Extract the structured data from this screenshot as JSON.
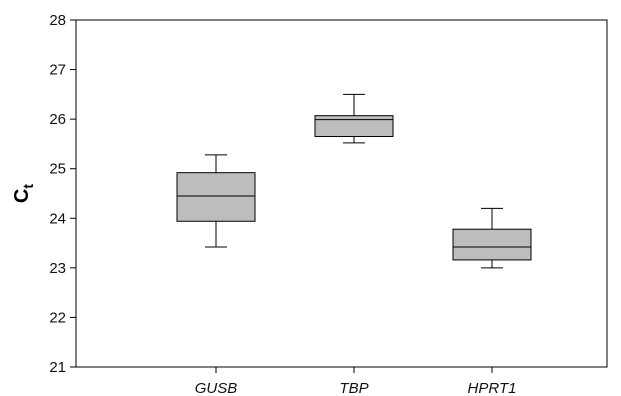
{
  "chart_data": {
    "type": "box",
    "ylabel_main": "C",
    "ylabel_sub": "t",
    "xlabel": "",
    "title": "",
    "ylim": [
      21,
      28
    ],
    "yticks": [
      21,
      22,
      23,
      24,
      25,
      26,
      27,
      28
    ],
    "grid": false,
    "box_fill": "#bdbdbd",
    "categories": [
      "GUSB",
      "TBP",
      "HPRT1"
    ],
    "boxes": [
      {
        "label": "GUSB",
        "whisker_low": 23.42,
        "q1": 23.94,
        "median": 24.45,
        "q3": 24.92,
        "whisker_high": 25.28
      },
      {
        "label": "TBP",
        "whisker_low": 25.52,
        "q1": 25.65,
        "median": 25.99,
        "q3": 26.07,
        "whisker_high": 26.5
      },
      {
        "label": "HPRT1",
        "whisker_low": 23.0,
        "q1": 23.16,
        "median": 23.42,
        "q3": 23.78,
        "whisker_high": 24.2
      }
    ]
  }
}
